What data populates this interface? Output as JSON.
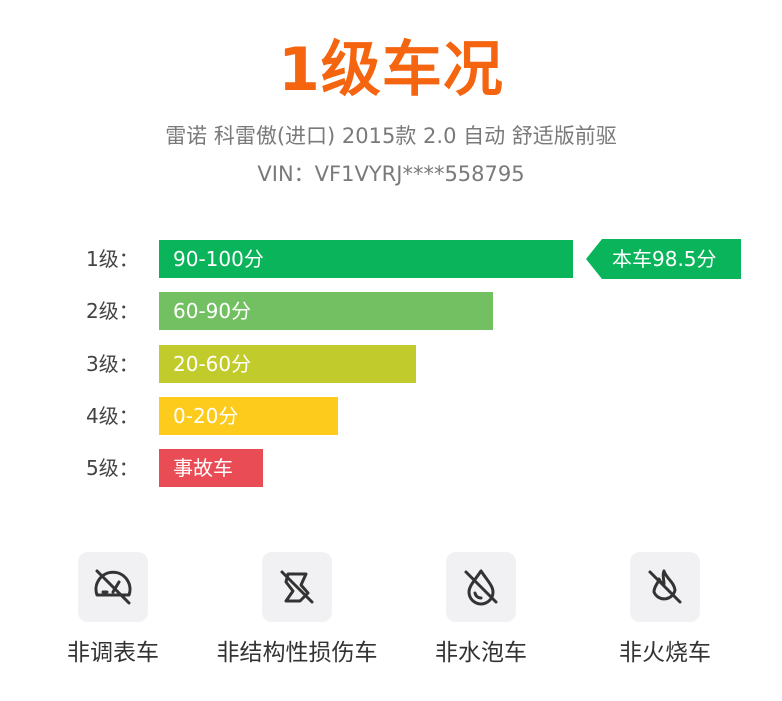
{
  "header": {
    "grade_title": "1级车况",
    "car_model": "雷诺 科雷傲(进口) 2015款 2.0 自动 舒适版前驱",
    "vin": "VIN：VF1VYRJ****558795"
  },
  "grades": [
    {
      "label": "1级：",
      "range": "90-100分",
      "color": "#0ab45a"
    },
    {
      "label": "2级：",
      "range": "60-90分",
      "color": "#73c062"
    },
    {
      "label": "3级：",
      "range": "20-60分",
      "color": "#c2cb2c"
    },
    {
      "label": "4级：",
      "range": "0-20分",
      "color": "#fccb1c"
    },
    {
      "label": "5级：",
      "range": "事故车",
      "color": "#ea4c55"
    }
  ],
  "score_tag": {
    "text": "本车98.5分",
    "color": "#0ab45a"
  },
  "features": [
    {
      "label": "非调表车",
      "icon": "no-odometer-tamper-icon"
    },
    {
      "label": "非结构性损伤车",
      "icon": "no-structural-damage-icon"
    },
    {
      "label": "非水泡车",
      "icon": "no-flood-damage-icon"
    },
    {
      "label": "非火烧车",
      "icon": "no-fire-damage-icon"
    }
  ],
  "colors": {
    "title": "#f5640f",
    "muted_text": "#7a7a7a",
    "icon": "#333333",
    "icon_bg": "#f1f1f4"
  }
}
